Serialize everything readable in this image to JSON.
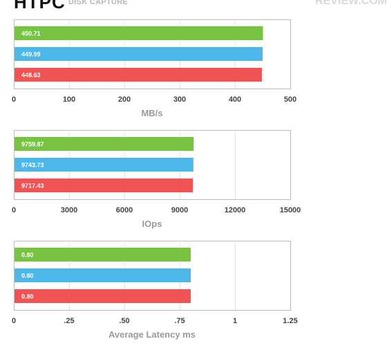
{
  "header": {
    "brand": "HTPC",
    "subtitle": "DISK CAPTURE",
    "watermark": "REVIEW.COM"
  },
  "colors": {
    "green": "#76c442",
    "blue": "#4cb8ea",
    "red": "#ef5353",
    "frame": "#bdbdbd",
    "grid": "#e9e9e9"
  },
  "chart_data": [
    {
      "type": "bar",
      "orientation": "horizontal",
      "values": [
        450.71,
        449.99,
        448.63
      ],
      "labels": [
        "450.71",
        "449.99",
        "448.63"
      ],
      "series_colors": [
        "#76c442",
        "#4cb8ea",
        "#ef5353"
      ],
      "xlim": [
        0,
        500
      ],
      "ticks": [
        "0",
        "100",
        "200",
        "300",
        "400",
        "500"
      ],
      "tick_values": [
        0,
        100,
        200,
        300,
        400,
        500
      ],
      "xlabel": "MB/s",
      "grid": true
    },
    {
      "type": "bar",
      "orientation": "horizontal",
      "values": [
        9759.87,
        9743.73,
        9717.43
      ],
      "labels": [
        "9759.87",
        "9743.73",
        "9717.43"
      ],
      "series_colors": [
        "#76c442",
        "#4cb8ea",
        "#ef5353"
      ],
      "xlim": [
        0,
        15000
      ],
      "ticks": [
        "0",
        "3000",
        "6000",
        "9000",
        "12000",
        "15000"
      ],
      "tick_values": [
        0,
        3000,
        6000,
        9000,
        12000,
        15000
      ],
      "xlabel": "IOps",
      "grid": true
    },
    {
      "type": "bar",
      "orientation": "horizontal",
      "values": [
        0.8,
        0.8,
        0.8
      ],
      "labels": [
        "0.80",
        "0.80",
        "0.80"
      ],
      "series_colors": [
        "#76c442",
        "#4cb8ea",
        "#ef5353"
      ],
      "xlim": [
        0,
        1.25
      ],
      "ticks": [
        "0",
        ".25",
        ".50",
        ".75",
        "1",
        "1.25"
      ],
      "tick_values": [
        0,
        0.25,
        0.5,
        0.75,
        1,
        1.25
      ],
      "xlabel": "Average Latency ms",
      "grid": true
    }
  ]
}
